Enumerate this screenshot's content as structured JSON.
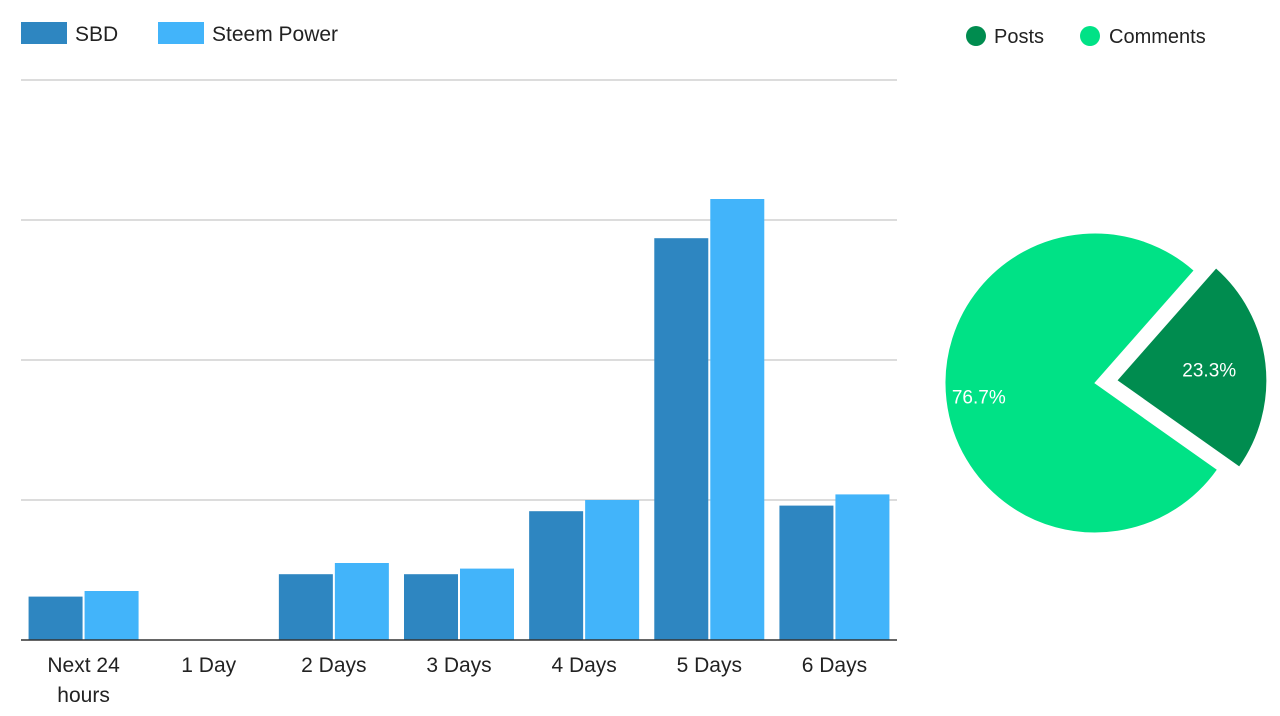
{
  "chart_data": [
    {
      "type": "bar",
      "categories": [
        "Next 24 hours",
        "1 Day",
        "2 Days",
        "3 Days",
        "4 Days",
        "5 Days",
        "6 Days"
      ],
      "series": [
        {
          "name": "SBD",
          "color": "#2e86c1",
          "values": [
            0.31,
            0,
            0.47,
            0.47,
            0.92,
            2.87,
            0.96
          ]
        },
        {
          "name": "Steem Power",
          "color": "#42b4fa",
          "values": [
            0.35,
            0,
            0.55,
            0.51,
            1.0,
            3.15,
            1.04
          ]
        }
      ],
      "ylim": [
        0,
        4
      ],
      "yticks": [
        0,
        1,
        2,
        3,
        4
      ],
      "ytick_labels_visible": false,
      "grid": true,
      "legend": "top-left"
    },
    {
      "type": "pie",
      "slices": [
        {
          "label": "Posts",
          "value": 23.3,
          "display": "23.3%",
          "color": "#008c4f",
          "exploded": true
        },
        {
          "label": "Comments",
          "value": 76.7,
          "display": "76.7%",
          "color": "#00e286",
          "exploded": false
        }
      ],
      "legend": "top"
    }
  ]
}
